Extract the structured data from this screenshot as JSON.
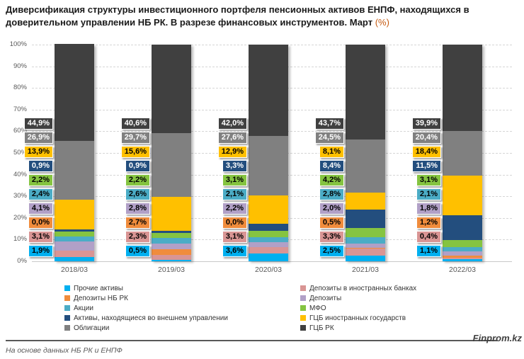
{
  "chart_data": {
    "type": "bar",
    "stacked": true,
    "title": "Диверсификация структуры инвестиционного портфеля пенсионных активов ЕНПФ, находящихся в доверительном управлении НБ РК. В разрезе финансовых инструментов. Март",
    "title_unit": "(%)",
    "categories": [
      "2018/03",
      "2019/03",
      "2020/03",
      "2021/03",
      "2022/03"
    ],
    "series": [
      {
        "name": "Прочие активы",
        "color": "#00B0F0",
        "text_color": "#000000",
        "values": [
          1.9,
          0.5,
          3.6,
          2.5,
          1.1
        ]
      },
      {
        "name": "Депозиты в иностранных банках",
        "color": "#D99594",
        "text_color": "#000000",
        "values": [
          3.1,
          2.3,
          3.1,
          3.3,
          0.4
        ]
      },
      {
        "name": "Депозиты НБ РК",
        "color": "#F08C3C",
        "text_color": "#000000",
        "values": [
          0.0,
          2.7,
          0.0,
          0.5,
          1.2
        ]
      },
      {
        "name": "Депозиты",
        "color": "#B1A0C7",
        "text_color": "#000000",
        "values": [
          4.1,
          2.8,
          2.2,
          2.0,
          1.8
        ]
      },
      {
        "name": "Акции",
        "color": "#4BACC6",
        "text_color": "#000000",
        "values": [
          2.4,
          2.6,
          2.1,
          2.8,
          2.1
        ]
      },
      {
        "name": "МФО",
        "color": "#85C441",
        "text_color": "#000000",
        "values": [
          2.2,
          2.2,
          3.1,
          4.2,
          3.1
        ]
      },
      {
        "name": "Активы, находящиеся во внешнем управлении",
        "color": "#234E7E",
        "text_color": "#FFFFFF",
        "values": [
          0.9,
          0.9,
          3.3,
          8.4,
          11.5
        ]
      },
      {
        "name": "ГЦБ иностранных государств",
        "color": "#FFC000",
        "text_color": "#000000",
        "values": [
          13.9,
          15.6,
          12.9,
          8.1,
          18.4
        ]
      },
      {
        "name": "Облигации",
        "color": "#808080",
        "text_color": "#FFFFFF",
        "values": [
          26.9,
          29.7,
          27.6,
          24.5,
          20.4
        ]
      },
      {
        "name": "ГЦБ РК",
        "color": "#404040",
        "text_color": "#FFFFFF",
        "values": [
          44.9,
          40.6,
          42.0,
          43.7,
          39.9
        ]
      }
    ],
    "ylim": [
      0,
      100
    ],
    "ytick_labels": [
      "0%",
      "10%",
      "20%",
      "30%",
      "40%",
      "50%",
      "60%",
      "70%",
      "80%",
      "90%",
      "100%"
    ],
    "grid": "dashed-horizontal",
    "legend_position": "bottom",
    "value_label_format": "comma-decimal-percent"
  },
  "legend": {
    "columns": [
      [
        "Прочие активы",
        "Депозиты НБ РК",
        "Акции",
        "Активы, находящиеся во внешнем управлении",
        "Облигации"
      ],
      [
        "Депозиты в иностранных банках",
        "Депозиты",
        "МФО",
        "ГЦБ иностранных государств",
        "ГЦБ РК"
      ]
    ]
  },
  "footer": {
    "source": "На основе данных НБ РК и ЕНПФ",
    "brand": "Finprom.kz"
  }
}
